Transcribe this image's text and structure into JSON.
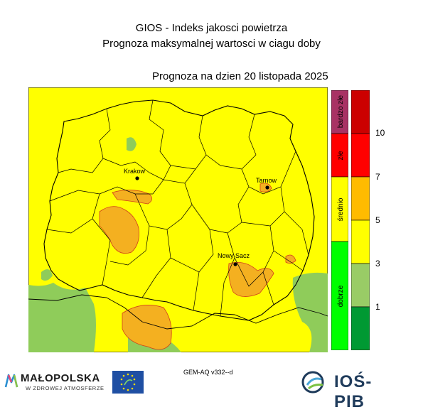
{
  "header": {
    "title": "GIOS - Indeks jakosci powietrza",
    "subtitle": "Prognoza maksymalnej wartosci w ciagu doby",
    "forecast_date": "Prognoza na dzien  20 listopada 2025"
  },
  "cities": [
    {
      "label": "Krakow"
    },
    {
      "label": "Tarnow"
    },
    {
      "label": "Nowy Sacz"
    }
  ],
  "legend": {
    "categories": [
      {
        "label": "bardzo złe",
        "color": "#a83264"
      },
      {
        "label": "złe",
        "color": "#ff0000"
      },
      {
        "label": "średnio",
        "color": "#ffff00"
      },
      {
        "label": "dobrze",
        "color": "#00ff00"
      }
    ],
    "scale_colors": [
      "#009933",
      "#99cc66",
      "#ffff00",
      "#ffbb00",
      "#ff0000",
      "#cc0000"
    ],
    "ticks": [
      "1",
      "3",
      "5",
      "7",
      "10"
    ]
  },
  "map_colors": {
    "yellow": "#ffff00",
    "orange": "#f4b020",
    "green": "#8fcc5a",
    "outline": "#000000"
  },
  "footer": {
    "model": "GEM-AQ v332--d",
    "logo_malopolska": "MAŁOPOLSKA",
    "logo_malopolska_sub": "W ZDROWEJ ATMOSFERZE",
    "logo_ios": "IOŚ-PIB"
  }
}
